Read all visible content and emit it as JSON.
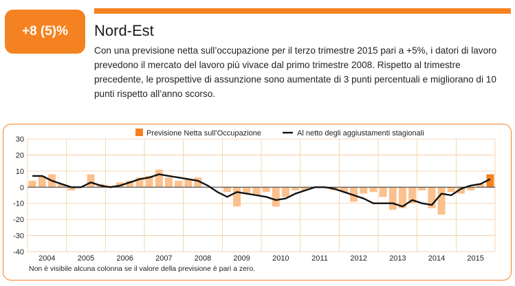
{
  "badge": {
    "label": "+8 (5)%"
  },
  "region": {
    "title": "Nord-Est"
  },
  "description": "Con una previsione netta sull’occupazione per il terzo trimestre 2015 pari a +5%, i datori di lavoro prevedono il mercato del lavoro più vivace dal primo trimestre 2008. Rispetto al trimestre precedente, le prospettive di assunzione sono aumentate di 3 punti percentuali e migliorano di 10 punti rispetto all’anno scorso.",
  "footnote": "Non è visibile alcuna colonna se il valore della previsione è pari a zero.",
  "colors": {
    "accent": "#f58220",
    "bar": "#fbc08d",
    "bar_highlight": "#f58220",
    "line": "#111111",
    "grid": "#f2c9a0"
  },
  "chart_data": {
    "type": "bar",
    "legend": {
      "position": "top",
      "entries": [
        "Previsione Netta sull’Occupazione",
        "Al netto degli aggiustamenti stagionali"
      ]
    },
    "ylim": [
      -40,
      30
    ],
    "yticks": [
      30,
      20,
      10,
      0,
      -10,
      -20,
      -30,
      -40
    ],
    "grid": true,
    "years": [
      "2004",
      "2005",
      "2006",
      "2007",
      "2008",
      "2009",
      "2010",
      "2011",
      "2012",
      "2013",
      "2014",
      "2015"
    ],
    "quarters_per_year": 4,
    "series": [
      {
        "name": "Previsione Netta sull’Occupazione",
        "kind": "bar",
        "values": [
          4,
          7,
          8,
          2,
          -2,
          0,
          8,
          2,
          1,
          3,
          4,
          6,
          7,
          11,
          6,
          4,
          5,
          6,
          0,
          0,
          -3,
          -12,
          -4,
          -5,
          -3,
          -12,
          -6,
          -2,
          -2,
          0,
          0,
          -2,
          -3,
          -9,
          -4,
          -3,
          -6,
          -14,
          -13,
          -10,
          -2,
          -13,
          -17,
          -3,
          -4,
          -2,
          2,
          8
        ]
      },
      {
        "name": "Al netto degli aggiustamenti stagionali",
        "kind": "line",
        "values": [
          7,
          7,
          4,
          2,
          0,
          0,
          3,
          1,
          0,
          1,
          3,
          5,
          6,
          8,
          7,
          6,
          5,
          4,
          1,
          -3,
          -6,
          -3,
          -4,
          -5,
          -6,
          -8,
          -7,
          -4,
          -2,
          0,
          0,
          -1,
          -3,
          -5,
          -7,
          -10,
          -10,
          -10,
          -12,
          -8,
          -10,
          -11,
          -4,
          -5,
          -1,
          1,
          2,
          5
        ]
      }
    ]
  }
}
